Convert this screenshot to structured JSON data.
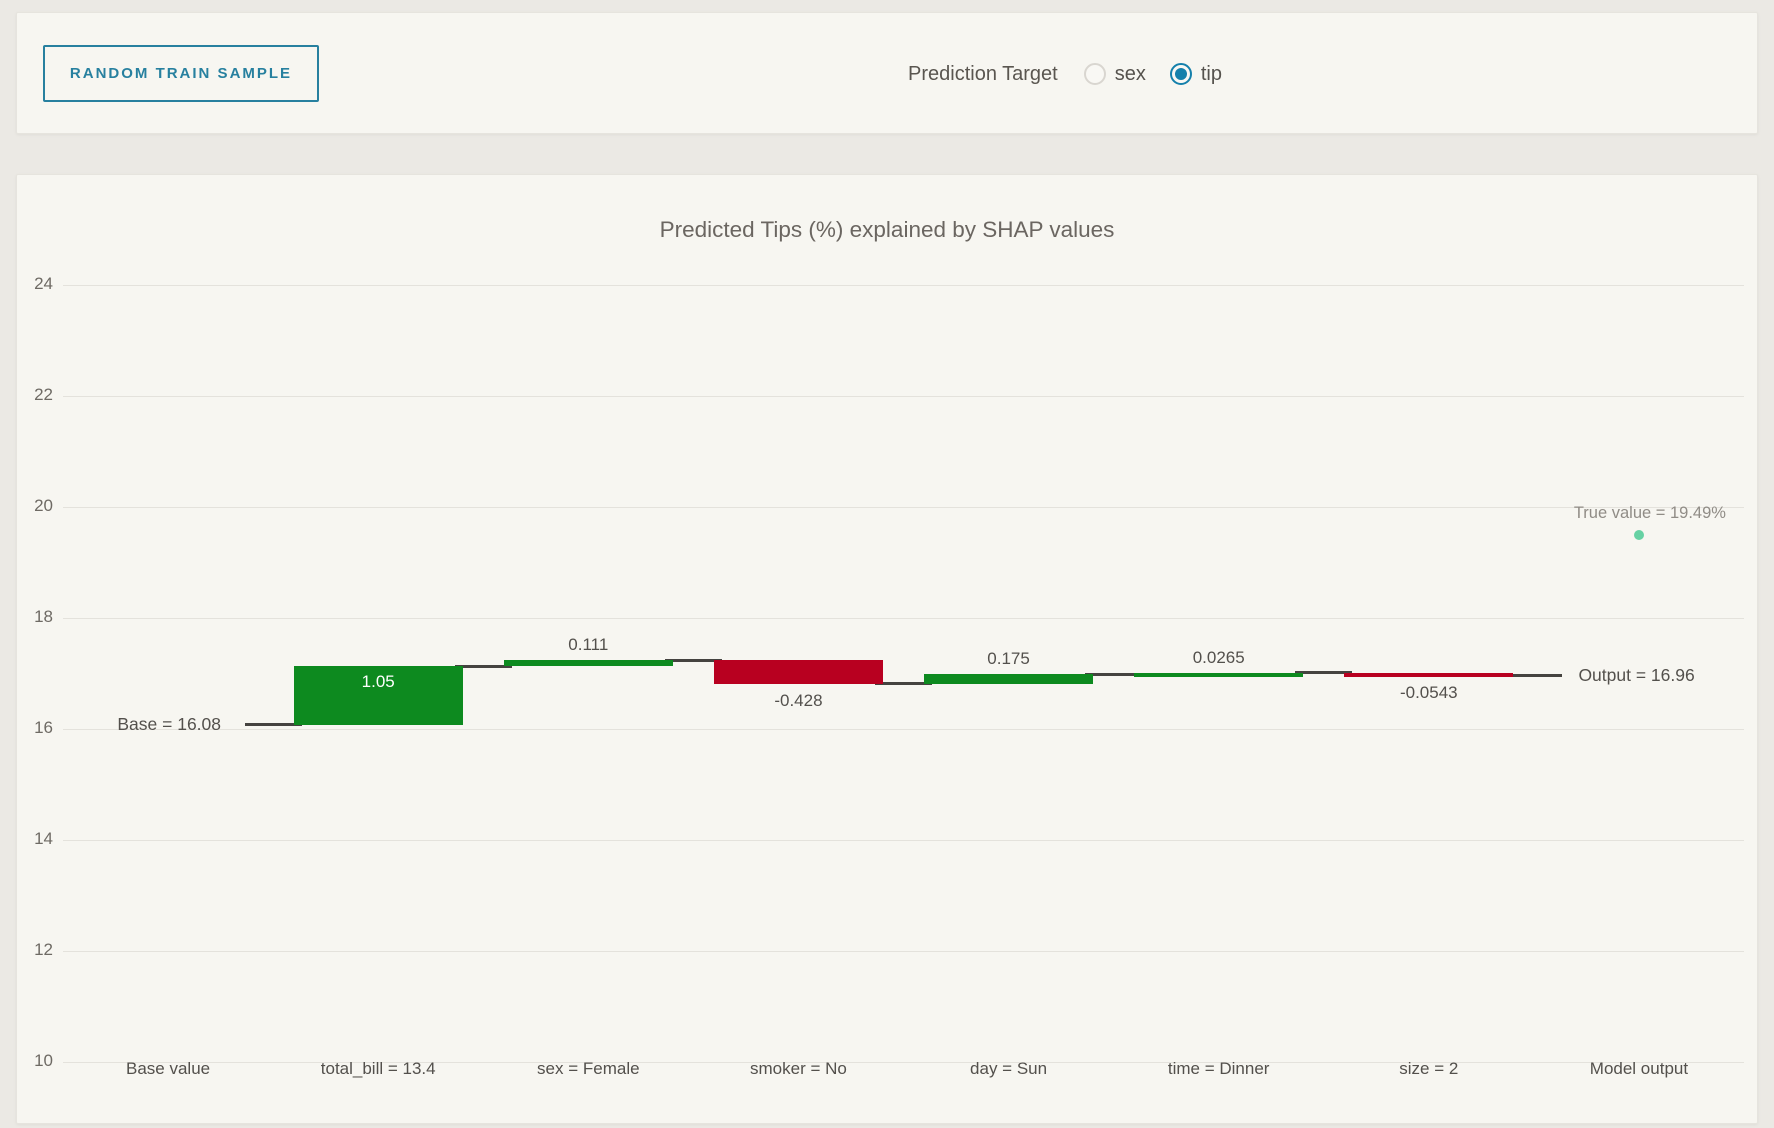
{
  "toolbar": {
    "sample_button": "RANDOM TRAIN SAMPLE",
    "prediction_target_label": "Prediction Target",
    "options": [
      {
        "label": "sex",
        "selected": false
      },
      {
        "label": "tip",
        "selected": true
      }
    ]
  },
  "colors": {
    "accent_teal": "#1580ab",
    "button_teal": "#27809f",
    "positive_green": "#0d8a1f",
    "negative_red": "#b80020",
    "connector_dark": "#454340",
    "gridline": "#e4e2dc",
    "true_value_dot": "#66d1a3",
    "axis_text": "#6e6a64",
    "label_text": "#53504c",
    "muted_text": "#908c86"
  },
  "chart_data": {
    "type": "waterfall",
    "title": "Predicted Tips (%) explained by SHAP values",
    "categories": [
      "Base value",
      "total_bill = 13.4",
      "sex = Female",
      "smoker = No",
      "day = Sun",
      "time = Dinner",
      "size = 2",
      "Model output"
    ],
    "base_value": 16.08,
    "base_label": "Base = 16.08",
    "contributions": [
      {
        "category": "total_bill = 13.4",
        "value": 1.05,
        "label": "1.05",
        "label_position": "inside"
      },
      {
        "category": "sex = Female",
        "value": 0.111,
        "label": "0.111",
        "label_position": "above"
      },
      {
        "category": "smoker = No",
        "value": -0.428,
        "label": "-0.428",
        "label_position": "below"
      },
      {
        "category": "day = Sun",
        "value": 0.175,
        "label": "0.175",
        "label_position": "above"
      },
      {
        "category": "time = Dinner",
        "value": 0.0265,
        "label": "0.0265",
        "label_position": "above"
      },
      {
        "category": "size = 2",
        "value": -0.0543,
        "label": "-0.0543",
        "label_position": "below"
      }
    ],
    "output_value": 16.96,
    "output_label": "Output = 16.96",
    "true_value": 19.49,
    "true_value_label": "True value = 19.49%",
    "y_ticks": [
      24,
      22,
      20,
      18,
      16,
      14,
      12,
      10
    ],
    "ylim": [
      10,
      24
    ],
    "grid": true,
    "legend": "none"
  }
}
